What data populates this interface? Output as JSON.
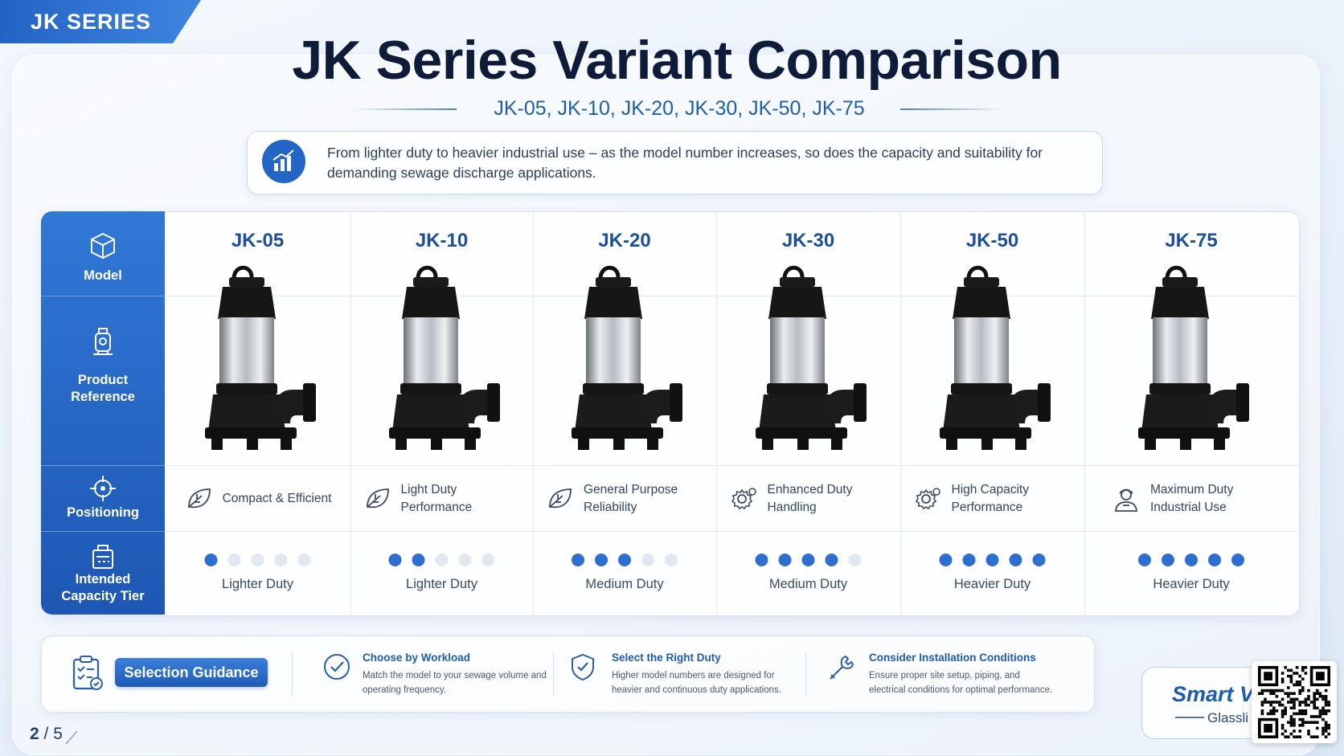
{
  "badge": "JK SERIES",
  "title": "JK Series Variant Comparison",
  "subtitle": "JK-05, JK-10, JK-20, JK-30, JK-50, JK-75",
  "intro": "From lighter duty to heavier industrial use – as the model number increases, so does the capacity and suitability for demanding sewage discharge applications.",
  "table": {
    "row_headers": [
      "Model",
      "Product Reference",
      "Positioning",
      "Intended Capacity Tier"
    ],
    "level_max": 5,
    "columns": [
      {
        "model": "JK-05",
        "positioning": "Compact & Efficient",
        "level": 1,
        "tier": "Lighter Duty"
      },
      {
        "model": "JK-10",
        "positioning": "Light Duty Performance",
        "level": 2,
        "tier": "Lighter Duty"
      },
      {
        "model": "JK-20",
        "positioning": "General Purpose Reliability",
        "level": 3,
        "tier": "Medium Duty"
      },
      {
        "model": "JK-30",
        "positioning": "Enhanced Duty Handling",
        "level": 4,
        "tier": "Medium Duty"
      },
      {
        "model": "JK-50",
        "positioning": "High Capacity Performance",
        "level": 5,
        "tier": "Heavier Duty"
      },
      {
        "model": "JK-75",
        "positioning": "Maximum Duty Industrial Use",
        "level": 5,
        "tier": "Heavier Duty"
      }
    ]
  },
  "guidance": {
    "label": "Selection Guidance",
    "items": [
      {
        "title": "Choose by Workload",
        "text": "Match the model to your sewage volume and operating frequency."
      },
      {
        "title": "Select the Right Duty",
        "text": "Higher model numbers are designed for heavier and continuous duty applications."
      },
      {
        "title": "Consider Installation Conditions",
        "text": "Ensure proper site setup, piping, and electrical conditions for optimal performance."
      }
    ]
  },
  "page": {
    "current": 2,
    "separator": "/",
    "total": 5
  },
  "corner": {
    "title": "Smart V",
    "subtitle": "Glassli"
  }
}
